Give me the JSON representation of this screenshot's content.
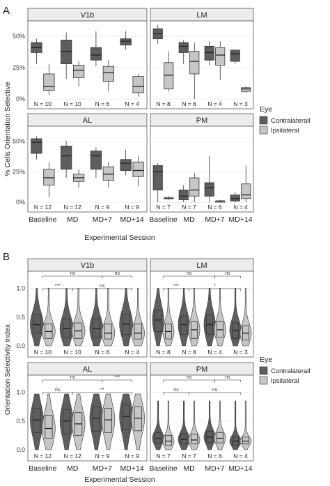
{
  "colors": {
    "contralateral": "#5e5e5e",
    "ipsilateral": "#c6c6c6"
  },
  "figure": {
    "label_a": "A",
    "label_b": "B",
    "xlabel": "Experimental Session",
    "legend": {
      "title": "Eye",
      "items": [
        "Contralaterall",
        "Ipsilateral"
      ]
    }
  },
  "chart_data": [
    {
      "type": "box",
      "panel": "A",
      "ylabel": "% Cells Orientation Selective",
      "xlabel": "Experimental Session",
      "categories": [
        "Baseline",
        "MD",
        "MD+7",
        "MD+14"
      ],
      "yticks": [
        "0%",
        "25%",
        "50%"
      ],
      "ylim": [
        0,
        60
      ],
      "series_names": [
        "Contralaterall",
        "Ipsilateral"
      ],
      "facets": [
        {
          "name": "V1b",
          "n": [
            "N = 10",
            "N = 10",
            "N = 6",
            "N = 4"
          ],
          "boxes": [
            [
              [
                28,
                37,
                41,
                45,
                48
              ],
              [
                3,
                7,
                10,
                20,
                28
              ]
            ],
            [
              [
                16,
                28,
                38,
                47,
                53
              ],
              [
                10,
                17,
                23,
                27,
                30
              ]
            ],
            [
              [
                26,
                31,
                35,
                41,
                54
              ],
              [
                6,
                14,
                21,
                26,
                31
              ]
            ],
            [
              [
                39,
                43,
                46,
                48,
                54
              ],
              [
                2,
                5,
                10,
                18,
                20
              ]
            ]
          ]
        },
        {
          "name": "LM",
          "n": [
            "N = 8",
            "N = 8",
            "N = 4",
            "N = 3"
          ],
          "boxes": [
            [
              [
                44,
                48,
                52,
                56,
                59
              ],
              [
                6,
                8,
                19,
                29,
                38
              ]
            ],
            [
              [
                28,
                37,
                42,
                45,
                47
              ],
              [
                0,
                20,
                30,
                38,
                45
              ]
            ],
            [
              [
                27,
                31,
                37,
                42,
                46
              ],
              [
                15,
                27,
                35,
                41,
                46
              ]
            ],
            [
              [
                28,
                30,
                36,
                39,
                39
              ],
              [
                5,
                6,
                8,
                9,
                10
              ]
            ]
          ]
        },
        {
          "name": "AL",
          "n": [
            "N = 12",
            "N = 12",
            "N = 9",
            "N = 9"
          ],
          "boxes": [
            [
              [
                35,
                40,
                49,
                52,
                54
              ],
              [
                4,
                14,
                20,
                27,
                33
              ]
            ],
            [
              [
                20,
                27,
                38,
                46,
                50
              ],
              [
                12,
                17,
                20,
                23,
                27
              ]
            ],
            [
              [
                20,
                27,
                38,
                42,
                45
              ],
              [
                12,
                18,
                23,
                29,
                33
              ]
            ],
            [
              [
                22,
                26,
                32,
                35,
                43
              ],
              [
                13,
                21,
                26,
                33,
                38
              ]
            ]
          ]
        },
        {
          "name": "PM",
          "n": [
            "N = 7",
            "N = 7",
            "N = 6",
            "N = 4"
          ],
          "boxes": [
            [
              [
                0,
                10,
                25,
                30,
                32
              ],
              [
                2,
                3,
                3,
                4,
                5
              ]
            ],
            [
              [
                0,
                2,
                5,
                10,
                14
              ],
              [
                0,
                5,
                10,
                20,
                24
              ]
            ],
            [
              [
                0,
                5,
                12,
                16,
                38
              ],
              [
                0,
                0,
                1,
                1,
                2
              ]
            ],
            [
              [
                0,
                1,
                3,
                6,
                8
              ],
              [
                0,
                3,
                6,
                15,
                30
              ]
            ]
          ]
        }
      ]
    },
    {
      "type": "violin",
      "panel": "B",
      "ylabel": "Orientation Selectivity Index",
      "xlabel": "Experimental Session",
      "categories": [
        "Baseline",
        "MD",
        "MD+7",
        "MD+14"
      ],
      "yticks": [
        "0.0",
        "0.5",
        "1.0"
      ],
      "ylim": [
        0,
        1.25
      ],
      "series_names": [
        "Contralaterall",
        "Ipsilateral"
      ],
      "facets": [
        {
          "name": "V1b",
          "n": [
            "N = 10",
            "N = 10",
            "N = 6",
            "N = 4"
          ],
          "medians": [
            [
              0.37,
              0.25
            ],
            [
              0.3,
              0.26
            ],
            [
              0.3,
              0.22
            ],
            [
              0.38,
              0.22
            ]
          ],
          "quartiles": [
            [
              [
                0.22,
                0.55
              ],
              [
                0.13,
                0.38
              ]
            ],
            [
              [
                0.15,
                0.47
              ],
              [
                0.13,
                0.4
              ]
            ],
            [
              [
                0.15,
                0.47
              ],
              [
                0.12,
                0.38
              ]
            ],
            [
              [
                0.2,
                0.55
              ],
              [
                0.12,
                0.38
              ]
            ]
          ],
          "sig": [
            {
              "from": 0,
              "to": 1,
              "label": "***",
              "level": 0
            },
            {
              "from": 1,
              "to": 3,
              "label": "ns",
              "level": 0
            },
            {
              "from": 0,
              "to": 2,
              "label": "ns",
              "level": 1
            },
            {
              "from": 2,
              "to": 3,
              "label": "ns",
              "level": 1
            }
          ]
        },
        {
          "name": "LM",
          "n": [
            "N = 8",
            "N = 8",
            "N = 4",
            "N = 3"
          ],
          "medians": [
            [
              0.45,
              0.25
            ],
            [
              0.37,
              0.28
            ],
            [
              0.37,
              0.28
            ],
            [
              0.27,
              0.22
            ]
          ],
          "quartiles": [
            [
              [
                0.25,
                0.62
              ],
              [
                0.12,
                0.38
              ]
            ],
            [
              [
                0.2,
                0.52
              ],
              [
                0.13,
                0.42
              ]
            ],
            [
              [
                0.2,
                0.55
              ],
              [
                0.15,
                0.42
              ]
            ],
            [
              [
                0.13,
                0.4
              ],
              [
                0.1,
                0.35
              ]
            ]
          ],
          "sig": [
            {
              "from": 0,
              "to": 1,
              "label": "***",
              "level": 0
            },
            {
              "from": 1,
              "to": 3,
              "label": "*",
              "level": 0
            },
            {
              "from": 0,
              "to": 2,
              "label": "ns",
              "level": 1
            },
            {
              "from": 2,
              "to": 3,
              "label": "ns",
              "level": 1
            }
          ]
        },
        {
          "name": "AL",
          "n": [
            "N = 12",
            "N = 12",
            "N = 9",
            "N = 9"
          ],
          "medians": [
            [
              0.52,
              0.37
            ],
            [
              0.5,
              0.45
            ],
            [
              0.55,
              0.52
            ],
            [
              0.58,
              0.55
            ]
          ],
          "quartiles": [
            [
              [
                0.3,
                0.72
              ],
              [
                0.2,
                0.6
              ]
            ],
            [
              [
                0.28,
                0.7
              ],
              [
                0.25,
                0.65
              ]
            ],
            [
              [
                0.32,
                0.75
              ],
              [
                0.3,
                0.72
              ]
            ],
            [
              [
                0.35,
                0.78
              ],
              [
                0.33,
                0.75
              ]
            ]
          ],
          "sig": [
            {
              "from": 0,
              "to": 1,
              "label": "ns",
              "level": 0
            },
            {
              "from": 1,
              "to": 3,
              "label": "**",
              "level": 0
            },
            {
              "from": 0,
              "to": 2,
              "label": "ns",
              "level": 1
            },
            {
              "from": 2,
              "to": 3,
              "label": "***",
              "level": 1
            }
          ]
        },
        {
          "name": "PM",
          "n": [
            "N = 7",
            "N = 7",
            "N = 6",
            "N = 4"
          ],
          "medians": [
            [
              0.2,
              0.15
            ],
            [
              0.18,
              0.17
            ],
            [
              0.22,
              0.2
            ],
            [
              0.15,
              0.15
            ]
          ],
          "quartiles": [
            [
              [
                0.12,
                0.3
              ],
              [
                0.08,
                0.25
              ]
            ],
            [
              [
                0.1,
                0.28
              ],
              [
                0.1,
                0.27
              ]
            ],
            [
              [
                0.13,
                0.32
              ],
              [
                0.12,
                0.3
              ]
            ],
            [
              [
                0.08,
                0.22
              ],
              [
                0.1,
                0.22
              ]
            ]
          ],
          "sig": [
            {
              "from": 0,
              "to": 1,
              "label": "ns",
              "level": 0
            },
            {
              "from": 1,
              "to": 3,
              "label": "ns",
              "level": 0
            },
            {
              "from": 0,
              "to": 2,
              "label": "ns",
              "level": 1
            },
            {
              "from": 2,
              "to": 3,
              "label": "ns",
              "level": 1
            }
          ]
        }
      ]
    }
  ]
}
